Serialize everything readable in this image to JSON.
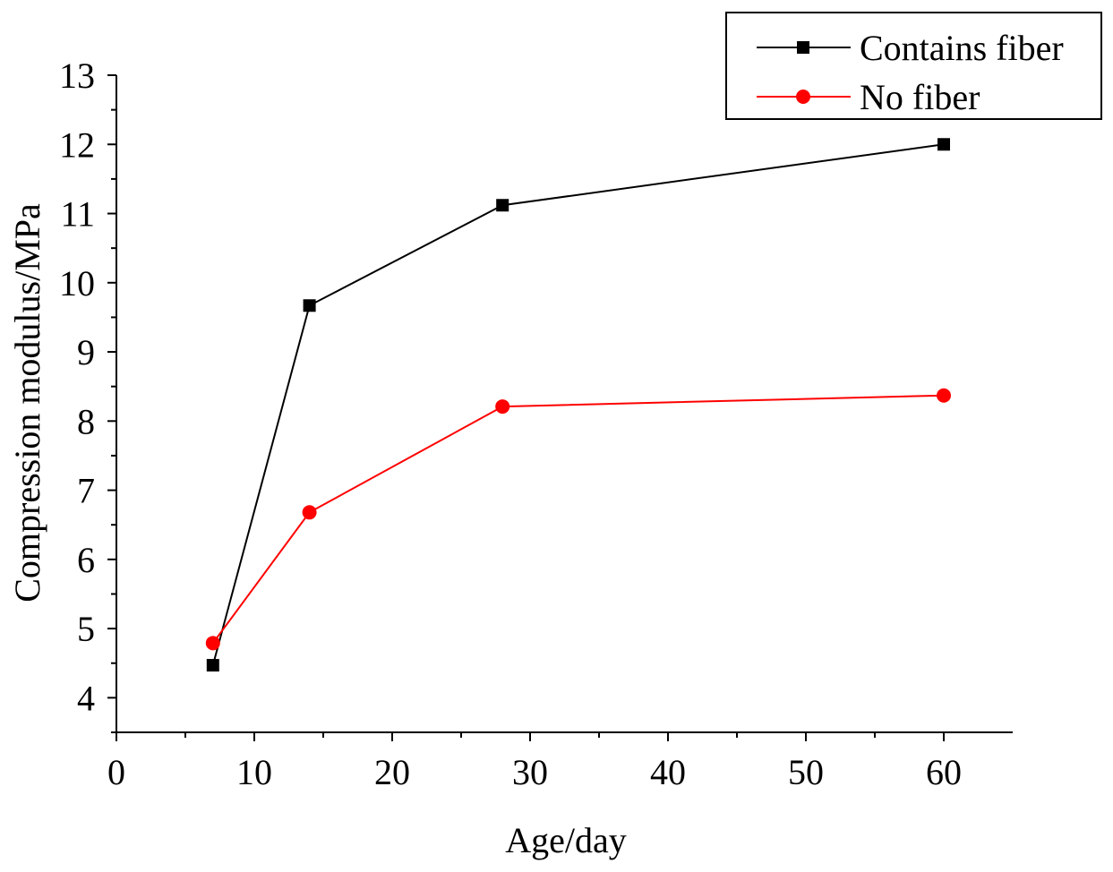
{
  "chart_data": {
    "type": "line",
    "title": "",
    "xlabel": "Age/day",
    "ylabel": "Compression modulus/MPa",
    "xlim": [
      0,
      65
    ],
    "ylim": [
      3.5,
      13
    ],
    "xticks": [
      0,
      10,
      20,
      30,
      40,
      50,
      60
    ],
    "yticks": [
      4,
      5,
      6,
      7,
      8,
      9,
      10,
      11,
      12,
      13
    ],
    "x": [
      7,
      14,
      28,
      60
    ],
    "legend_position": "top-right",
    "grid": false,
    "series": [
      {
        "name": "Contains fiber",
        "color": "#000000",
        "marker": "square",
        "values": [
          4.47,
          9.67,
          11.12,
          12.0
        ]
      },
      {
        "name": "No fiber",
        "color": "#ff0000",
        "marker": "circle",
        "values": [
          4.79,
          6.68,
          8.21,
          8.37
        ]
      }
    ]
  }
}
